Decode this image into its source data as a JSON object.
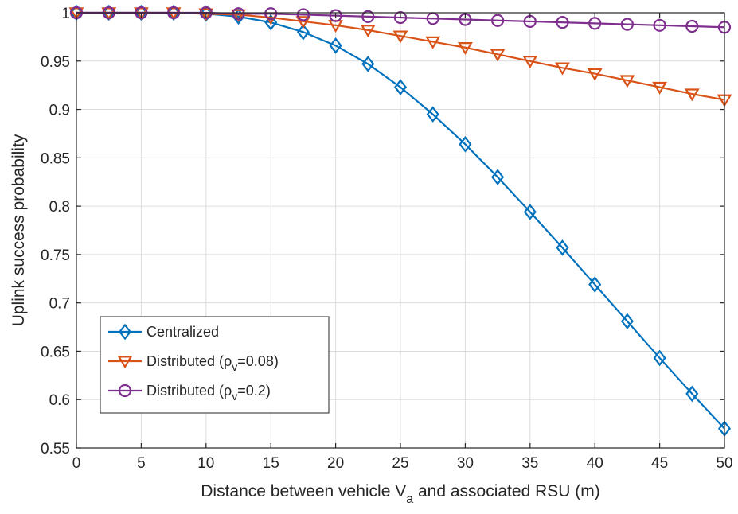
{
  "chart_data": {
    "type": "line",
    "title": "",
    "xlabel": {
      "prefix": "Distance between vehicle V",
      "subscript": "a",
      "suffix": " and associated RSU (m)"
    },
    "ylabel": "Uplink success probability",
    "xlim": [
      0,
      50
    ],
    "ylim": [
      0.55,
      1
    ],
    "xticks": [
      0,
      5,
      10,
      15,
      20,
      25,
      30,
      35,
      40,
      45,
      50
    ],
    "xtick_labels": [
      "0",
      "5",
      "10",
      "15",
      "20",
      "25",
      "30",
      "35",
      "40",
      "45",
      "50"
    ],
    "yticks": [
      0.55,
      0.6,
      0.65,
      0.7,
      0.75,
      0.8,
      0.85,
      0.9,
      0.95,
      1
    ],
    "ytick_labels": [
      "0.55",
      "0.6",
      "0.65",
      "0.7",
      "0.75",
      "0.8",
      "0.85",
      "0.9",
      "0.95",
      "1"
    ],
    "grid": true,
    "legend_position": "lower-left",
    "x": [
      0,
      2.5,
      5,
      7.5,
      10,
      12.5,
      15,
      17.5,
      20,
      22.5,
      25,
      27.5,
      30,
      32.5,
      35,
      37.5,
      40,
      42.5,
      45,
      47.5,
      50
    ],
    "series": [
      {
        "name": "Centralized",
        "legend": {
          "main": "Centralized",
          "sub": "",
          "tail": ""
        },
        "marker": "diamond",
        "color": "#0072BD",
        "values": [
          1.0,
          1.0,
          1.0,
          1.0,
          0.999,
          0.996,
          0.99,
          0.98,
          0.966,
          0.947,
          0.923,
          0.895,
          0.864,
          0.83,
          0.794,
          0.757,
          0.719,
          0.681,
          0.643,
          0.606,
          0.57
        ]
      },
      {
        "name": "Distributed (ρv=0.08)",
        "legend": {
          "main": "Distributed (ρ",
          "sub": "v",
          "tail": "=0.08)"
        },
        "marker": "triangle-down",
        "color": "#D95319",
        "values": [
          1.0,
          1.0,
          1.0,
          1.0,
          0.999,
          0.998,
          0.995,
          0.991,
          0.987,
          0.982,
          0.976,
          0.97,
          0.964,
          0.957,
          0.95,
          0.943,
          0.937,
          0.93,
          0.923,
          0.916,
          0.91
        ]
      },
      {
        "name": "Distributed (ρv=0.2)",
        "legend": {
          "main": "Distributed (ρ",
          "sub": "v",
          "tail": "=0.2)"
        },
        "marker": "circle",
        "color": "#7E2F8E",
        "values": [
          1.0,
          1.0,
          1.0,
          1.0,
          1.0,
          0.999,
          0.999,
          0.998,
          0.997,
          0.996,
          0.995,
          0.994,
          0.993,
          0.992,
          0.991,
          0.99,
          0.989,
          0.988,
          0.987,
          0.986,
          0.985
        ]
      }
    ]
  }
}
